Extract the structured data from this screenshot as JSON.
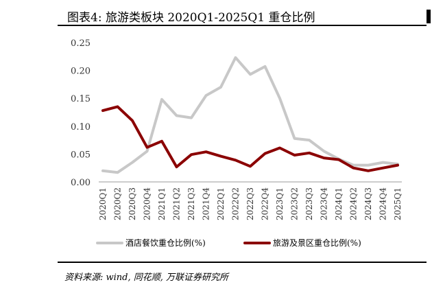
{
  "header": {
    "title": "图表4: 旅游类板块 2020Q1-2025Q1 重仓比例"
  },
  "source": {
    "text": "资料来源: wind, 同花顺, 万联证券研究所"
  },
  "chart_data": {
    "type": "line",
    "x": [
      "2020Q1",
      "2020Q2",
      "2020Q3",
      "2020Q4",
      "2021Q1",
      "2021Q2",
      "2021Q3",
      "2021Q4",
      "2022Q1",
      "2022Q2",
      "2022Q3",
      "2022Q4",
      "2023Q1",
      "2023Q2",
      "2023Q3",
      "2023Q4",
      "2024Q1",
      "2024Q2",
      "2024Q3",
      "2024Q4",
      "2025Q1"
    ],
    "yticks": [
      "0.25",
      "0.20",
      "0.15",
      "0.10",
      "0.05",
      "0.00"
    ],
    "ylim": [
      0,
      0.25
    ],
    "grid": false,
    "legend_position": "bottom",
    "series": [
      {
        "name": "酒店餐饮重仓比例(%)",
        "color": "#c8c8c8",
        "values": [
          0.02,
          0.017,
          0.035,
          0.055,
          0.148,
          0.119,
          0.115,
          0.155,
          0.17,
          0.223,
          0.193,
          0.207,
          0.15,
          0.078,
          0.075,
          0.055,
          0.041,
          0.03,
          0.03,
          0.035,
          0.032
        ]
      },
      {
        "name": "旅游及景区重仓比例(%)",
        "color": "#8b0000",
        "values": [
          0.128,
          0.135,
          0.11,
          0.062,
          0.073,
          0.027,
          0.049,
          0.054,
          0.046,
          0.039,
          0.028,
          0.051,
          0.061,
          0.048,
          0.052,
          0.043,
          0.04,
          0.025,
          0.02,
          0.025,
          0.03
        ]
      }
    ]
  }
}
